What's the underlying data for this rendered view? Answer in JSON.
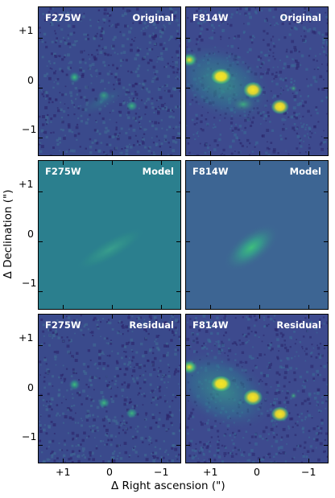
{
  "colors": {
    "background_dark": "#3b3d87",
    "model_f275": "#2b7f8e",
    "model_f814": "#3d6593",
    "glow_green": "#3ec07c",
    "glow_yellow": "#f7e624"
  },
  "panels": [
    {
      "row": 0,
      "col": 0,
      "filter": "F275W",
      "kind": "Original"
    },
    {
      "row": 0,
      "col": 1,
      "filter": "F814W",
      "kind": "Original"
    },
    {
      "row": 1,
      "col": 0,
      "filter": "F275W",
      "kind": "Model"
    },
    {
      "row": 1,
      "col": 1,
      "filter": "F814W",
      "kind": "Model"
    },
    {
      "row": 2,
      "col": 0,
      "filter": "F275W",
      "kind": "Residual"
    },
    {
      "row": 2,
      "col": 1,
      "filter": "F814W",
      "kind": "Residual"
    }
  ],
  "axes": {
    "ylabel": "Δ Declination (\")",
    "xlabel": "Δ Right ascension (\")",
    "y_ticks": [
      "+1",
      "0",
      "−1"
    ],
    "x_ticks": [
      "+1",
      "0",
      "−1"
    ]
  }
}
